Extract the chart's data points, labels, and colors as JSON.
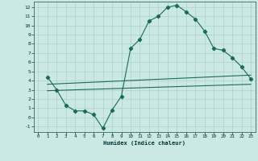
{
  "xlabel": "Humidex (Indice chaleur)",
  "bg_color": "#cce8e4",
  "grid_color": "#b0d5d0",
  "line_color": "#1a6b5a",
  "xlim": [
    -0.5,
    23.5
  ],
  "ylim": [
    -1.6,
    12.6
  ],
  "xticks": [
    0,
    1,
    2,
    3,
    4,
    5,
    6,
    7,
    8,
    9,
    10,
    11,
    12,
    13,
    14,
    15,
    16,
    17,
    18,
    19,
    20,
    21,
    22,
    23
  ],
  "yticks": [
    -1,
    0,
    1,
    2,
    3,
    4,
    5,
    6,
    7,
    8,
    9,
    10,
    11,
    12
  ],
  "curve1_x": [
    1,
    2,
    3,
    4,
    5,
    6,
    7,
    8,
    9,
    10,
    11,
    12,
    13,
    14,
    15,
    16,
    17,
    18,
    19,
    20,
    21,
    22,
    23
  ],
  "curve1_y": [
    4.4,
    3.0,
    1.3,
    0.7,
    0.7,
    0.3,
    -1.2,
    0.8,
    2.3,
    7.5,
    8.5,
    10.5,
    11.0,
    12.0,
    12.2,
    11.5,
    10.7,
    9.4,
    7.5,
    7.3,
    6.5,
    5.5,
    4.2
  ],
  "line2_x": [
    1,
    23
  ],
  "line2_y": [
    3.6,
    4.6
  ],
  "line3_x": [
    1,
    23
  ],
  "line3_y": [
    2.9,
    3.6
  ]
}
